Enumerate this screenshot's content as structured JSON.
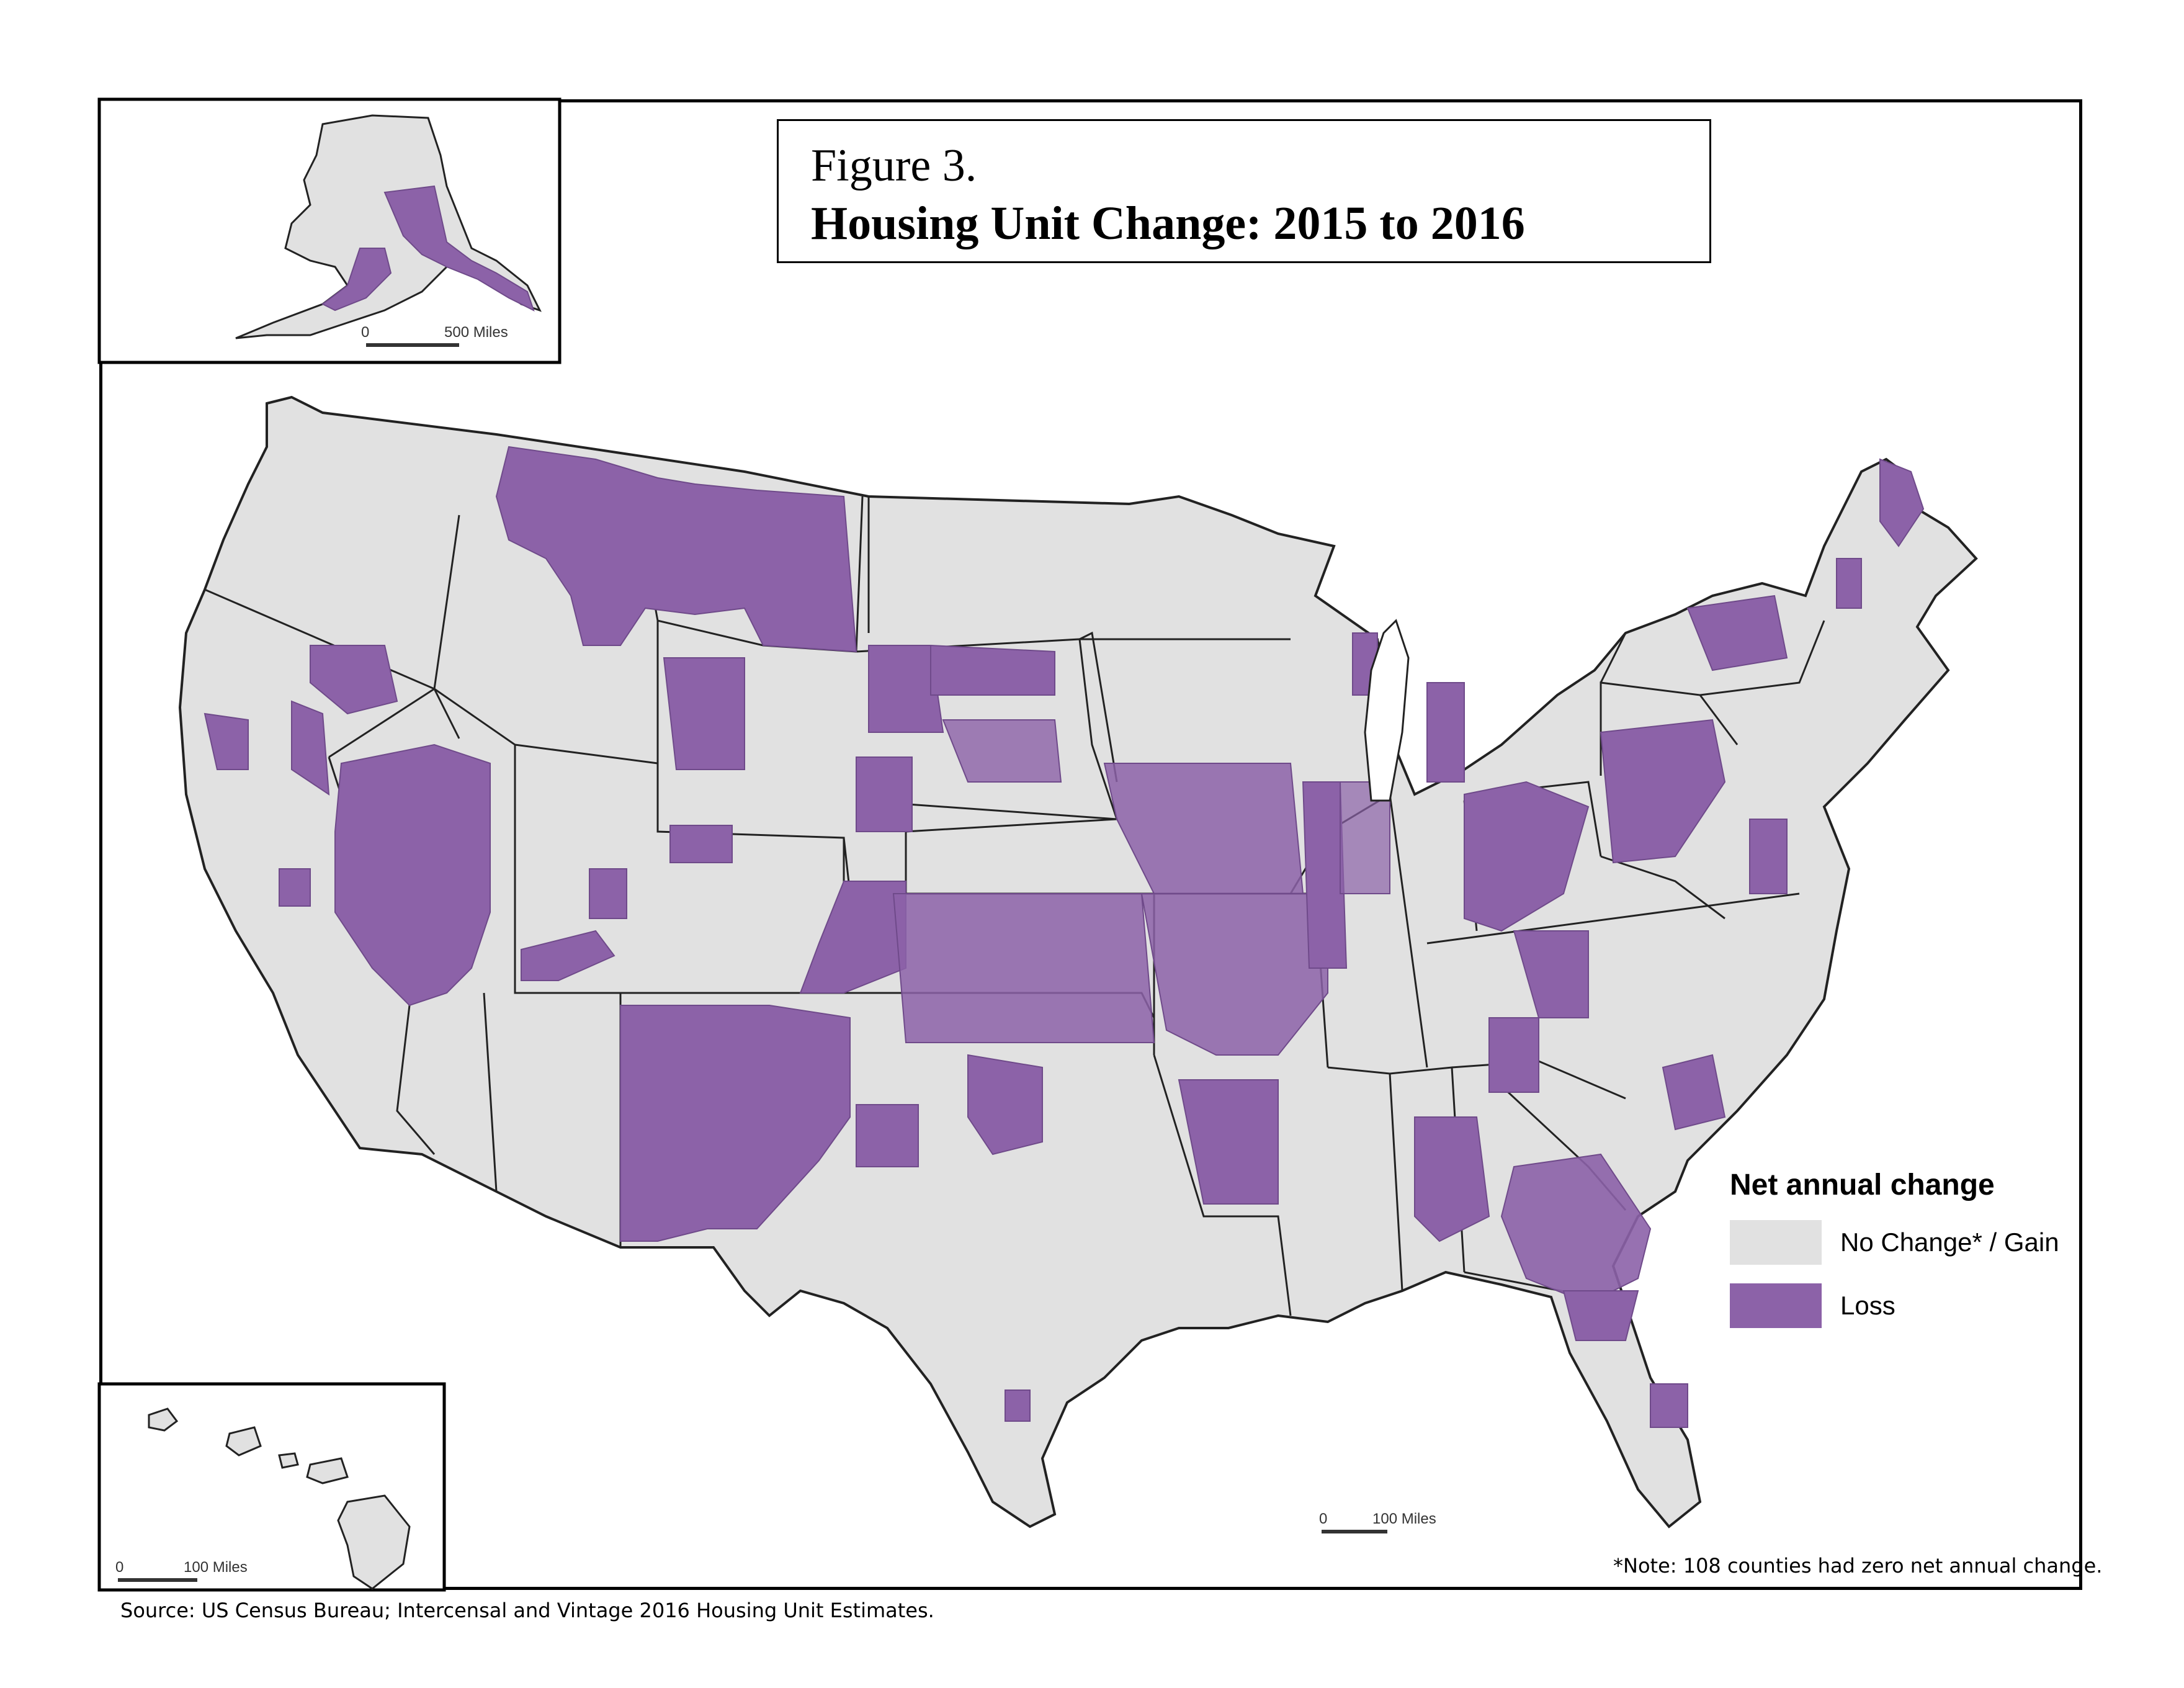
{
  "title": {
    "figure_label": "Figure 3.",
    "main": "Housing Unit Change: 2015 to 2016"
  },
  "legend": {
    "title": "Net annual change",
    "items": [
      {
        "label": "No Change* / Gain",
        "color": "#e1e1e1"
      },
      {
        "label": "Loss",
        "color": "#8c62a8"
      }
    ]
  },
  "note": "*Note: 108 counties had zero net annual change.",
  "source": "Source: US Census Bureau; Intercensal and Vintage 2016 Housing Unit Estimates.",
  "scale_bars": {
    "alaska": {
      "zero": "0",
      "distance": "500 Miles"
    },
    "hawaii": {
      "zero": "0",
      "distance": "100 Miles"
    },
    "conus": {
      "zero": "0",
      "distance": "100 Miles"
    }
  },
  "colors": {
    "gain": "#e1e1e1",
    "loss": "#8c62a8",
    "border": "#000000",
    "county_line": "#ffffff"
  }
}
